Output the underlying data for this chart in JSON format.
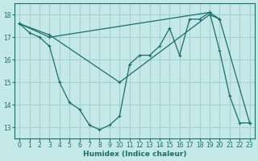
{
  "xlabel": "Humidex (Indice chaleur)",
  "bg_color": "#c5e8e8",
  "grid_color": "#a8d0d0",
  "line_color": "#1a6e6a",
  "xlim": [
    -0.5,
    23.5
  ],
  "ylim": [
    12.5,
    18.5
  ],
  "yticks": [
    13,
    14,
    15,
    16,
    17,
    18
  ],
  "xticks": [
    0,
    1,
    2,
    3,
    4,
    5,
    6,
    7,
    8,
    9,
    10,
    11,
    12,
    13,
    14,
    15,
    16,
    17,
    18,
    19,
    20,
    21,
    22,
    23
  ],
  "series": [
    {
      "x": [
        0,
        1,
        2,
        3,
        4,
        5,
        6,
        7,
        8,
        9,
        10,
        11,
        12,
        13,
        14,
        15,
        16,
        17,
        18,
        19,
        20,
        21,
        22,
        23
      ],
      "y": [
        17.6,
        17.2,
        17.0,
        16.6,
        15.0,
        14.1,
        13.8,
        13.1,
        12.9,
        13.1,
        13.5,
        15.8,
        16.2,
        16.2,
        16.6,
        17.4,
        16.2,
        17.8,
        17.8,
        18.1,
        16.4,
        14.4,
        13.2,
        13.2
      ]
    },
    {
      "x": [
        0,
        3,
        19,
        20,
        23
      ],
      "y": [
        17.6,
        17.0,
        18.1,
        17.8,
        13.2
      ]
    },
    {
      "x": [
        0,
        3,
        10,
        19,
        20
      ],
      "y": [
        17.6,
        17.1,
        15.0,
        18.0,
        17.8
      ]
    }
  ]
}
